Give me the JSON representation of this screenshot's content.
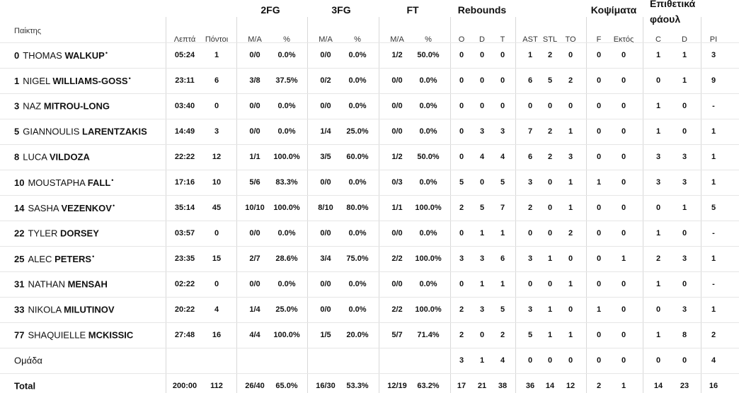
{
  "header": {
    "groups": [
      "2FG",
      "3FG",
      "FT",
      "Rebounds",
      "Κοψίματα",
      "Επιθετικά φάουλ"
    ],
    "columns": [
      "Παίκτης",
      "Λεπτά",
      "Πόντοι",
      "Μ/Α",
      "%",
      "Μ/Α",
      "%",
      "Μ/Α",
      "%",
      "O",
      "D",
      "T",
      "AST",
      "STL",
      "TO",
      "F",
      "Εκτός",
      "C",
      "D",
      "PI"
    ]
  },
  "rows": [
    {
      "number": "0",
      "first": "THOMAS",
      "last": "WALKUP",
      "starter": "•",
      "cells": [
        "05:24",
        "1",
        "0/0",
        "0.0%",
        "0/0",
        "0.0%",
        "1/2",
        "50.0%",
        "0",
        "0",
        "0",
        "1",
        "2",
        "0",
        "0",
        "0",
        "1",
        "1",
        "3"
      ]
    },
    {
      "number": "1",
      "first": "NIGEL",
      "last": "WILLIAMS-GOSS",
      "starter": "•",
      "cells": [
        "23:11",
        "6",
        "3/8",
        "37.5%",
        "0/2",
        "0.0%",
        "0/0",
        "0.0%",
        "0",
        "0",
        "0",
        "6",
        "5",
        "2",
        "0",
        "0",
        "0",
        "1",
        "9"
      ]
    },
    {
      "number": "3",
      "first": "NAZ",
      "last": "MITROU-LONG",
      "cells": [
        "03:40",
        "0",
        "0/0",
        "0.0%",
        "0/0",
        "0.0%",
        "0/0",
        "0.0%",
        "0",
        "0",
        "0",
        "0",
        "0",
        "0",
        "0",
        "0",
        "1",
        "0",
        "-"
      ]
    },
    {
      "number": "5",
      "first": "GIANNOULIS",
      "last": "LARENTZAKIS",
      "cells": [
        "14:49",
        "3",
        "0/0",
        "0.0%",
        "1/4",
        "25.0%",
        "0/0",
        "0.0%",
        "0",
        "3",
        "3",
        "7",
        "2",
        "1",
        "0",
        "0",
        "1",
        "0",
        "1"
      ]
    },
    {
      "number": "8",
      "first": "LUCA",
      "last": "VILDOZA",
      "cells": [
        "22:22",
        "12",
        "1/1",
        "100.0%",
        "3/5",
        "60.0%",
        "1/2",
        "50.0%",
        "0",
        "4",
        "4",
        "6",
        "2",
        "3",
        "0",
        "0",
        "3",
        "3",
        "1"
      ]
    },
    {
      "number": "10",
      "first": "MOUSTAPHA",
      "last": "FALL",
      "starter": "•",
      "cells": [
        "17:16",
        "10",
        "5/6",
        "83.3%",
        "0/0",
        "0.0%",
        "0/3",
        "0.0%",
        "5",
        "0",
        "5",
        "3",
        "0",
        "1",
        "1",
        "0",
        "3",
        "3",
        "1"
      ]
    },
    {
      "number": "14",
      "first": "SASHA",
      "last": "VEZENKOV",
      "starter": "•",
      "cells": [
        "35:14",
        "45",
        "10/10",
        "100.0%",
        "8/10",
        "80.0%",
        "1/1",
        "100.0%",
        "2",
        "5",
        "7",
        "2",
        "0",
        "1",
        "0",
        "0",
        "0",
        "1",
        "5"
      ]
    },
    {
      "number": "22",
      "first": "TYLER",
      "last": "DORSEY",
      "cells": [
        "03:57",
        "0",
        "0/0",
        "0.0%",
        "0/0",
        "0.0%",
        "0/0",
        "0.0%",
        "0",
        "1",
        "1",
        "0",
        "0",
        "2",
        "0",
        "0",
        "1",
        "0",
        "-"
      ]
    },
    {
      "number": "25",
      "first": "ALEC",
      "last": "PETERS",
      "starter": "•",
      "cells": [
        "23:35",
        "15",
        "2/7",
        "28.6%",
        "3/4",
        "75.0%",
        "2/2",
        "100.0%",
        "3",
        "3",
        "6",
        "3",
        "1",
        "0",
        "0",
        "1",
        "2",
        "3",
        "1"
      ]
    },
    {
      "number": "31",
      "first": "NATHAN",
      "last": "MENSAH",
      "cells": [
        "02:22",
        "0",
        "0/0",
        "0.0%",
        "0/0",
        "0.0%",
        "0/0",
        "0.0%",
        "0",
        "1",
        "1",
        "0",
        "0",
        "1",
        "0",
        "0",
        "1",
        "0",
        "-"
      ]
    },
    {
      "number": "33",
      "first": "NIKOLA",
      "last": "MILUTINOV",
      "cells": [
        "20:22",
        "4",
        "1/4",
        "25.0%",
        "0/0",
        "0.0%",
        "2/2",
        "100.0%",
        "2",
        "3",
        "5",
        "3",
        "1",
        "0",
        "1",
        "0",
        "0",
        "3",
        "1"
      ]
    },
    {
      "number": "77",
      "first": "SHAQUIELLE",
      "last": "MCKISSIC",
      "cells": [
        "27:48",
        "16",
        "4/4",
        "100.0%",
        "1/5",
        "20.0%",
        "5/7",
        "71.4%",
        "2",
        "0",
        "2",
        "5",
        "1",
        "1",
        "0",
        "0",
        "1",
        "8",
        "2"
      ]
    }
  ],
  "team": {
    "label": "Ομάδα",
    "cells": [
      null,
      null,
      null,
      null,
      null,
      null,
      null,
      null,
      "3",
      "1",
      "4",
      "0",
      "0",
      "0",
      "0",
      "0",
      "0",
      "0",
      "4"
    ]
  },
  "total": {
    "label": "Total",
    "cells": [
      "200:00",
      "112",
      "26/40",
      "65.0%",
      "16/30",
      "53.3%",
      "12/19",
      "63.2%",
      "17",
      "21",
      "38",
      "36",
      "14",
      "12",
      "2",
      "1",
      "14",
      "23",
      "16"
    ]
  }
}
